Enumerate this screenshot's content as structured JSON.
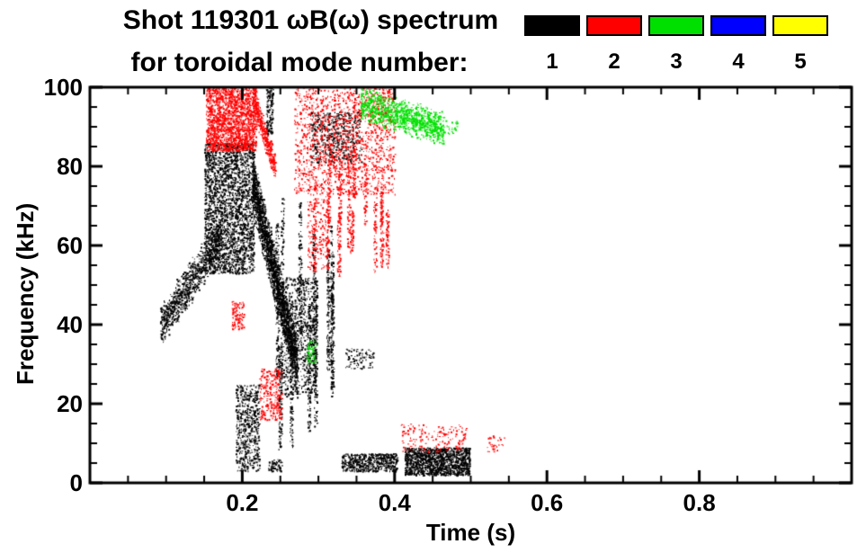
{
  "chart_data": {
    "type": "scatter",
    "title": "Shot 119301 ωB(ω) spectrum",
    "subtitle": "for toroidal mode number:",
    "xlabel": "Time (s)",
    "ylabel": "Frequency (kHz)",
    "xlim": [
      0,
      1.0
    ],
    "ylim": [
      0,
      100
    ],
    "x_minor_step": 0.05,
    "y_minor_step": 5,
    "grid": false,
    "legend_position": "top-right",
    "xticks": [
      {
        "v": 0.2,
        "label": "0.2"
      },
      {
        "v": 0.4,
        "label": "0.4"
      },
      {
        "v": 0.6,
        "label": "0.6"
      },
      {
        "v": 0.8,
        "label": "0.8"
      }
    ],
    "yticks": [
      {
        "v": 0,
        "label": "0"
      },
      {
        "v": 20,
        "label": "20"
      },
      {
        "v": 40,
        "label": "40"
      },
      {
        "v": 60,
        "label": "60"
      },
      {
        "v": 80,
        "label": "80"
      },
      {
        "v": 100,
        "label": "100"
      }
    ],
    "legend": [
      {
        "label": "1",
        "color": "#000000"
      },
      {
        "label": "2",
        "color": "#ff0000"
      },
      {
        "label": "3",
        "color": "#00e000"
      },
      {
        "label": "4",
        "color": "#0000ff"
      },
      {
        "label": "5",
        "color": "#ffff00"
      }
    ],
    "series": [
      {
        "name": "1",
        "color": "#000000",
        "clusters": [
          {
            "type": "band",
            "t": [
              0.092,
              0.172
            ],
            "f0": 40,
            "slope": 275,
            "spread": 6,
            "n": 900
          },
          {
            "type": "box",
            "t": [
              0.15,
              0.215
            ],
            "f": [
              53,
              86
            ],
            "n": 2600
          },
          {
            "type": "band",
            "t": [
              0.213,
              0.272
            ],
            "f0": 76,
            "slope": -800,
            "spread": 8,
            "n": 2200
          },
          {
            "type": "box",
            "t": [
              0.255,
              0.298
            ],
            "f": [
              22,
              52
            ],
            "n": 700
          },
          {
            "type": "streaks",
            "t": [
              0.244,
              0.318
            ],
            "f": [
              8,
              74
            ],
            "streaks": 11,
            "per": 130,
            "len": [
              18,
              48
            ]
          },
          {
            "type": "box",
            "t": [
              0.33,
              0.403
            ],
            "f": [
              3,
              7.5
            ],
            "n": 600
          },
          {
            "type": "box",
            "t": [
              0.413,
              0.498
            ],
            "f": [
              2,
              9
            ],
            "n": 1400
          },
          {
            "type": "box",
            "t": [
              0.191,
              0.222
            ],
            "f": [
              3,
              25
            ],
            "n": 600
          },
          {
            "type": "box",
            "t": [
              0.234,
              0.252
            ],
            "f": [
              3,
              6
            ],
            "n": 70
          },
          {
            "type": "box",
            "t": [
              0.335,
              0.372
            ],
            "f": [
              29,
              34
            ],
            "n": 90
          },
          {
            "type": "box",
            "t": [
              0.289,
              0.356
            ],
            "f": [
              81,
              94
            ],
            "n": 550
          },
          {
            "type": "box",
            "t": [
              0.231,
              0.24
            ],
            "f": [
              88,
              100
            ],
            "n": 150
          }
        ]
      },
      {
        "name": "2",
        "color": "#ff0000",
        "clusters": [
          {
            "type": "box",
            "t": [
              0.152,
              0.218
            ],
            "f": [
              84,
              100
            ],
            "n": 1800
          },
          {
            "type": "band",
            "t": [
              0.214,
              0.243
            ],
            "f0": 97,
            "slope": -600,
            "spread": 4,
            "n": 400
          },
          {
            "type": "box",
            "t": [
              0.268,
              0.4
            ],
            "f": [
              73,
              100
            ],
            "n": 1500
          },
          {
            "type": "streaks",
            "t": [
              0.278,
              0.405
            ],
            "f": [
              52,
              86
            ],
            "streaks": 13,
            "per": 60,
            "len": [
              10,
              26
            ]
          },
          {
            "type": "box",
            "t": [
              0.186,
              0.202
            ],
            "f": [
              39,
              46
            ],
            "n": 110
          },
          {
            "type": "box",
            "t": [
              0.222,
              0.252
            ],
            "f": [
              16,
              29
            ],
            "n": 260
          },
          {
            "type": "box",
            "t": [
              0.408,
              0.494
            ],
            "f": [
              8,
              15
            ],
            "n": 170
          },
          {
            "type": "box",
            "t": [
              0.518,
              0.545
            ],
            "f": [
              7,
              12
            ],
            "n": 30
          },
          {
            "type": "box",
            "t": [
              0.285,
              0.312
            ],
            "f": [
              54,
              72
            ],
            "n": 170
          }
        ]
      },
      {
        "name": "3",
        "color": "#00e000",
        "clusters": [
          {
            "type": "band",
            "t": [
              0.355,
              0.465
            ],
            "f0": 96,
            "slope": -60,
            "spread": 5,
            "n": 1100
          },
          {
            "type": "box",
            "t": [
              0.284,
              0.297
            ],
            "f": [
              30,
              36
            ],
            "n": 55
          },
          {
            "type": "box",
            "t": [
              0.466,
              0.482
            ],
            "f": [
              88,
              92
            ],
            "n": 25
          }
        ]
      },
      {
        "name": "4",
        "color": "#0000ff",
        "clusters": []
      },
      {
        "name": "5",
        "color": "#ffff00",
        "clusters": []
      }
    ]
  }
}
